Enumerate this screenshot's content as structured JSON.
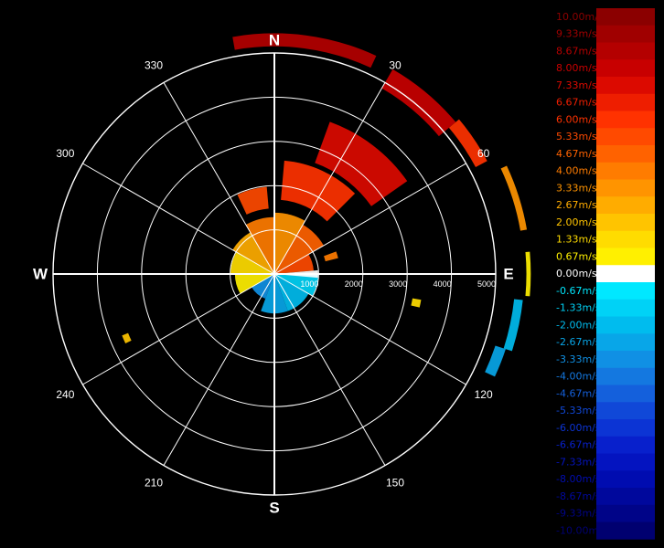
{
  "chart_data": {
    "type": "polar-radar",
    "cardinals": [
      {
        "dir": 0,
        "label": "N"
      },
      {
        "dir": 90,
        "label": "E"
      },
      {
        "dir": 180,
        "label": "S"
      },
      {
        "dir": 270,
        "label": "W"
      }
    ],
    "azimuth_labels": [
      {
        "dir": 30,
        "label": "30"
      },
      {
        "dir": 60,
        "label": "60"
      },
      {
        "dir": 120,
        "label": "120"
      },
      {
        "dir": 150,
        "label": "150"
      },
      {
        "dir": 210,
        "label": "210"
      },
      {
        "dir": 240,
        "label": "240"
      },
      {
        "dir": 300,
        "label": "300"
      },
      {
        "dir": 330,
        "label": "330"
      }
    ],
    "range_labels": [
      {
        "range": 1000,
        "label": "1000"
      },
      {
        "range": 2000,
        "label": "2000"
      },
      {
        "range": 3000,
        "label": "3000"
      },
      {
        "range": 4000,
        "label": "4000"
      },
      {
        "range": 5000,
        "label": "5000"
      }
    ],
    "ring_count": 5,
    "colorbar": [
      {
        "label": "10.00m/s",
        "color": "#8b0000"
      },
      {
        "label": "9.33m/s",
        "color": "#a00000"
      },
      {
        "label": "8.67m/s",
        "color": "#b40000"
      },
      {
        "label": "8.00m/s",
        "color": "#c80000"
      },
      {
        "label": "7.33m/s",
        "color": "#dc0a00"
      },
      {
        "label": "6.67m/s",
        "color": "#ee1e00"
      },
      {
        "label": "6.00m/s",
        "color": "#ff3200"
      },
      {
        "label": "5.33m/s",
        "color": "#ff4a00"
      },
      {
        "label": "4.67m/s",
        "color": "#ff6200"
      },
      {
        "label": "4.00m/s",
        "color": "#ff7c00"
      },
      {
        "label": "3.33m/s",
        "color": "#ff9400"
      },
      {
        "label": "2.67m/s",
        "color": "#ffac00"
      },
      {
        "label": "2.00m/s",
        "color": "#ffc400"
      },
      {
        "label": "1.33m/s",
        "color": "#ffdc00"
      },
      {
        "label": "0.67m/s",
        "color": "#fff000"
      },
      {
        "label": "0.00m/s",
        "color": "#ffffff"
      },
      {
        "label": "-0.67m/s",
        "color": "#00e8ff"
      },
      {
        "label": "-1.33m/s",
        "color": "#00d2f6"
      },
      {
        "label": "-2.00m/s",
        "color": "#00bcee"
      },
      {
        "label": "-2.67m/s",
        "color": "#08a6e8"
      },
      {
        "label": "-3.33m/s",
        "color": "#1090e4"
      },
      {
        "label": "-4.00m/s",
        "color": "#1478e0"
      },
      {
        "label": "-4.67m/s",
        "color": "#1460dc"
      },
      {
        "label": "-5.33m/s",
        "color": "#1048d8"
      },
      {
        "label": "-6.00m/s",
        "color": "#0c34d4"
      },
      {
        "label": "-6.67m/s",
        "color": "#0820cc"
      },
      {
        "label": "-7.33m/s",
        "color": "#0414c0"
      },
      {
        "label": "-8.00m/s",
        "color": "#000cb0"
      },
      {
        "label": "-8.67m/s",
        "color": "#00089c"
      },
      {
        "label": "-9.33m/s",
        "color": "#000488"
      },
      {
        "label": "-10.00m/s",
        "color": "#000070"
      }
    ],
    "velocity_sectors": [
      {
        "az1": 0,
        "az2": 30,
        "r1": 0,
        "r2": 1400,
        "v": 3.0
      },
      {
        "az1": 30,
        "az2": 60,
        "r1": 0,
        "r2": 1300,
        "v": 4.5
      },
      {
        "az1": 60,
        "az2": 85,
        "r1": 0,
        "r2": 900,
        "v": 5.5
      },
      {
        "az1": 330,
        "az2": 360,
        "r1": 0,
        "r2": 1300,
        "v": 4.0
      },
      {
        "az1": 300,
        "az2": 330,
        "r1": 0,
        "r2": 1100,
        "v": 2.5
      },
      {
        "az1": 270,
        "az2": 300,
        "r1": 0,
        "r2": 1000,
        "v": 1.3
      },
      {
        "az1": 240,
        "az2": 270,
        "r1": 0,
        "r2": 900,
        "v": 0.7
      },
      {
        "az1": 90,
        "az2": 120,
        "r1": 0,
        "r2": 1000,
        "v": -1.3
      },
      {
        "az1": 120,
        "az2": 160,
        "r1": 0,
        "r2": 900,
        "v": -2.0
      },
      {
        "az1": 160,
        "az2": 200,
        "r1": 0,
        "r2": 900,
        "v": -2.7
      },
      {
        "az1": 200,
        "az2": 240,
        "r1": 0,
        "r2": 600,
        "v": -3.3
      },
      {
        "az1": 85,
        "az2": 95,
        "r1": 0,
        "r2": 1000,
        "v": 0.0
      },
      {
        "az1": 5,
        "az2": 45,
        "r1": 1700,
        "r2": 2600,
        "v": 6.0
      },
      {
        "az1": 335,
        "az2": 355,
        "r1": 1500,
        "r2": 2000,
        "v": 5.3
      },
      {
        "az1": 20,
        "az2": 55,
        "r1": 2700,
        "r2": 3700,
        "v": 7.5
      },
      {
        "az1": 350,
        "az2": 25,
        "r1": 5200,
        "r2": 5500,
        "v": 8.7
      },
      {
        "az1": 30,
        "az2": 50,
        "r1": 4900,
        "r2": 5400,
        "v": 8.0
      },
      {
        "az1": 50,
        "az2": 62,
        "r1": 5200,
        "r2": 5500,
        "v": 6.0
      },
      {
        "az1": 65,
        "az2": 80,
        "r1": 5700,
        "r2": 5850,
        "v": 3.3
      },
      {
        "az1": 85,
        "az2": 95,
        "r1": 5750,
        "r2": 5850,
        "v": 0.7
      },
      {
        "az1": 96,
        "az2": 108,
        "r1": 5500,
        "r2": 5700,
        "v": -2.0
      },
      {
        "az1": 108,
        "az2": 115,
        "r1": 5300,
        "r2": 5550,
        "v": -2.7
      },
      {
        "az1": 70,
        "az2": 76,
        "r1": 1200,
        "r2": 1500,
        "v": 4.0
      },
      {
        "az1": 100,
        "az2": 103,
        "r1": 3200,
        "r2": 3400,
        "v": 1.3
      },
      {
        "az1": 245,
        "az2": 248,
        "r1": 3600,
        "r2": 3750,
        "v": 2.0
      }
    ]
  }
}
